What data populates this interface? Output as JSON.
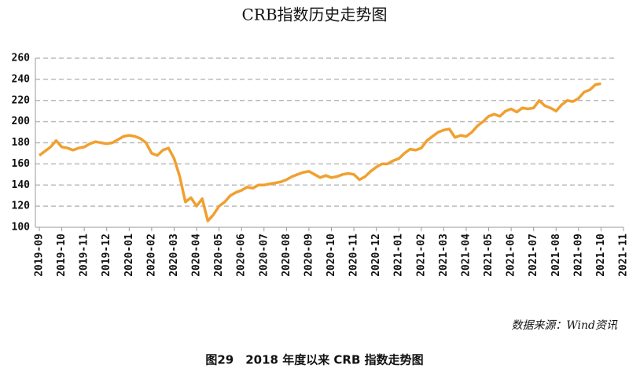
{
  "chart_data": {
    "type": "line",
    "title": "CRB指数历史走势图",
    "source": "数据来源：Wind资讯",
    "caption": "图29　2018 年度以来 CRB 指数走势图",
    "categories": [
      "2019-09",
      null,
      null,
      null,
      "2019-10",
      null,
      null,
      null,
      "2019-11",
      null,
      null,
      null,
      "2019-12",
      null,
      null,
      null,
      "2020-01",
      null,
      null,
      null,
      "2020-02",
      null,
      null,
      null,
      "2020-03",
      null,
      null,
      null,
      "2020-04",
      null,
      null,
      null,
      "2020-05",
      null,
      null,
      null,
      "2020-06",
      null,
      null,
      null,
      "2020-07",
      null,
      null,
      null,
      "2020-08",
      null,
      null,
      null,
      "2020-09",
      null,
      null,
      null,
      "2020-10",
      null,
      null,
      null,
      "2020-11",
      null,
      null,
      null,
      "2020-12",
      null,
      null,
      null,
      "2021-01",
      null,
      null,
      null,
      "2021-02",
      null,
      null,
      null,
      "2021-03",
      null,
      null,
      null,
      "2021-04",
      null,
      null,
      null,
      "2021-05",
      null,
      null,
      null,
      "2021-06",
      null,
      null,
      null,
      "2021-07",
      null,
      null,
      null,
      "2021-08",
      null,
      null,
      null,
      "2021-09",
      null,
      null,
      null,
      "2021-10",
      null,
      null,
      null,
      "2021-11"
    ],
    "series": [
      {
        "color": "#f0a030",
        "values": [
          168,
          172,
          176,
          182,
          176,
          175,
          173,
          175,
          176,
          179,
          181,
          180,
          179,
          180,
          183,
          186,
          187,
          186,
          184,
          180,
          170,
          168,
          173,
          175,
          165,
          148,
          124,
          128,
          120,
          127,
          106,
          112,
          120,
          124,
          130,
          133,
          135,
          138,
          137,
          140,
          140,
          141,
          142,
          143,
          145,
          148,
          150,
          152,
          153,
          150,
          147,
          149,
          147,
          148,
          150,
          151,
          150,
          145,
          148,
          153,
          157,
          160,
          160,
          163,
          165,
          170,
          174,
          173,
          175,
          182,
          186,
          190,
          192,
          193,
          185,
          187,
          186,
          190,
          196,
          200,
          205,
          207,
          205,
          210,
          212,
          209,
          213,
          212,
          213,
          220,
          215,
          213,
          210,
          216,
          220,
          219,
          222,
          228,
          230,
          235,
          236,
          null,
          null,
          null,
          null
        ]
      }
    ],
    "ylim": [
      100,
      260
    ],
    "yticks": [
      100,
      120,
      140,
      160,
      180,
      200,
      220,
      240,
      260
    ],
    "grid": true
  }
}
